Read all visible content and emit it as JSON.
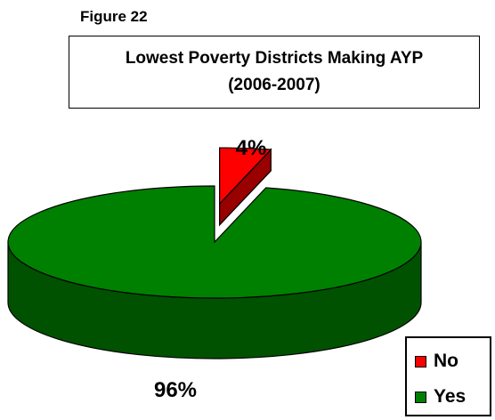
{
  "figure_label": "Figure 22",
  "chart_data": {
    "type": "pie",
    "title": "Lowest Poverty Districts Making AYP",
    "subtitle": "(2006-2007)",
    "style": "3d exploded",
    "legend_position": "bottom-right",
    "slices": [
      {
        "label": "No",
        "value": 4,
        "display": "4%",
        "color": "#ff0000",
        "side_color": "#990000",
        "exploded": true
      },
      {
        "label": "Yes",
        "value": 96,
        "display": "96%",
        "color": "#008000",
        "side_color": "#005200",
        "exploded": false
      }
    ]
  }
}
